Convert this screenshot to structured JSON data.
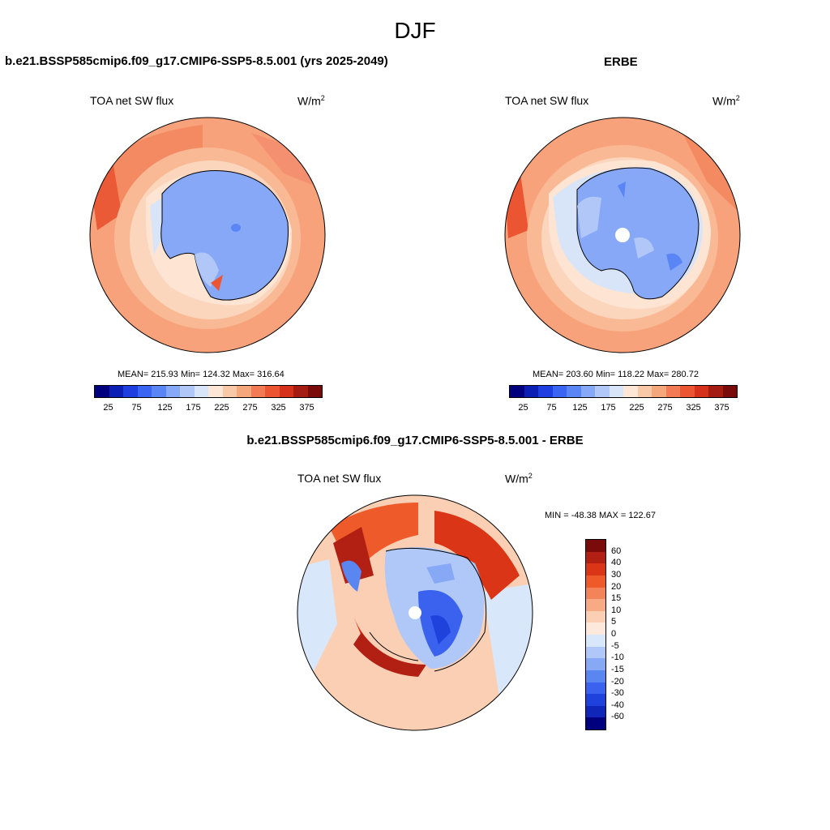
{
  "title": "DJF",
  "panels": {
    "model": {
      "title": "b.e21.BSSP585cmip6.f09_g17.CMIP6-SSP5-8.5.001 (yrs 2025-2049)",
      "variable": "TOA net SW flux",
      "units": "W/m",
      "units_sup": "2",
      "stats": "MEAN= 215.93  Min= 124.32  Max= 316.64"
    },
    "obs": {
      "title": "ERBE",
      "variable": "TOA net SW flux",
      "units": "W/m",
      "units_sup": "2",
      "stats": "MEAN= 203.60  Min= 118.22  Max= 280.72"
    },
    "diff": {
      "title": "b.e21.BSSP585cmip6.f09_g17.CMIP6-SSP5-8.5.001 - ERBE",
      "variable": "TOA net SW flux",
      "units": "W/m",
      "units_sup": "2",
      "stats": "MIN = -48.38 MAX = 122.67"
    }
  },
  "colorbar_main": {
    "colors": [
      "#00007f",
      "#0b1fb5",
      "#1e3ee0",
      "#3a64f2",
      "#5a86f5",
      "#86a8f7",
      "#b0c7f8",
      "#d8e4f7",
      "#fde6d5",
      "#f9c9a7",
      "#f5a77c",
      "#f27a55",
      "#ec5532",
      "#d6311b",
      "#a51c12",
      "#7a0b0b"
    ],
    "labels": [
      "25",
      "75",
      "125",
      "175",
      "225",
      "275",
      "325",
      "375"
    ]
  },
  "colorbar_diff": {
    "colors": [
      "#7a0b0b",
      "#b22014",
      "#d93516",
      "#ef5a2b",
      "#f38358",
      "#f8aa85",
      "#fbcfb4",
      "#fde8dc",
      "#d9e7fa",
      "#b0c8f8",
      "#86a8f5",
      "#5a86f2",
      "#3a62ee",
      "#1f42dc",
      "#0f26b9",
      "#00007f"
    ],
    "labels": [
      "60",
      "40",
      "30",
      "20",
      "15",
      "10",
      "5",
      "0",
      "-5",
      "-10",
      "-15",
      "-20",
      "-30",
      "-40",
      "-60"
    ]
  }
}
